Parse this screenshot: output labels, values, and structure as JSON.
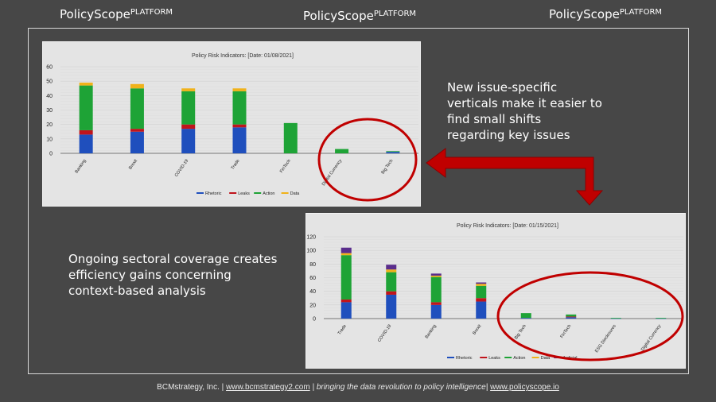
{
  "brand": {
    "name": "PolicyScope",
    "sup": "PLATFORM"
  },
  "callouts": {
    "top_right": [
      "New issue-specific",
      "verticals make it easier to",
      "find small shifts",
      "regarding key issues"
    ],
    "left": [
      "Ongoing sectoral coverage creates",
      "efficiency gains concerning",
      "context-based analysis"
    ]
  },
  "footer": {
    "company": "BCMstrategy, Inc. |",
    "site": "www.bcmstrategy2.com",
    "tagline": "| bringing the data revolution to policy intelligence|",
    "site2": "www.policyscope.io"
  },
  "colors": {
    "Rhetoric": "#1f4fbd",
    "Leaks": "#c0141c",
    "Action": "#1ea336",
    "Data": "#f0b21a",
    "Judicial": "#5a2d8c",
    "highlight": "#c00000"
  },
  "chart_data": [
    {
      "type": "bar",
      "stacked": true,
      "title": "Policy Risk Indicators: [Date: 01/08/2021]",
      "categories": [
        "Banking",
        "Brexit",
        "COVID-19",
        "Trade",
        "FinTech",
        "Digital Currency",
        "Big Tech"
      ],
      "series": [
        {
          "name": "Rhetoric",
          "values": [
            13,
            15,
            17,
            18,
            0,
            0,
            1
          ]
        },
        {
          "name": "Leaks",
          "values": [
            3,
            2,
            3,
            2,
            0,
            0,
            0
          ]
        },
        {
          "name": "Action",
          "values": [
            31,
            28,
            23,
            23,
            21,
            3,
            0.5
          ]
        },
        {
          "name": "Data",
          "values": [
            2,
            3,
            2,
            2,
            0,
            0,
            0
          ]
        }
      ],
      "yticks": [
        0,
        10,
        20,
        30,
        40,
        50,
        60
      ],
      "ylim": [
        0,
        60
      ],
      "legend": "bottom-center"
    },
    {
      "type": "bar",
      "stacked": true,
      "title": "Policy Risk Indicators: [Date: 01/15/2021]",
      "categories": [
        "Trade",
        "COVID-19",
        "Banking",
        "Brexit",
        "Big Tech",
        "FinTech",
        "ESG Disclosures",
        "Digital Currency"
      ],
      "series": [
        {
          "name": "Rhetoric",
          "values": [
            24,
            35,
            20,
            25,
            1,
            2,
            0.5,
            0.5
          ]
        },
        {
          "name": "Leaks",
          "values": [
            4,
            5,
            4,
            5,
            0,
            1,
            0,
            0
          ]
        },
        {
          "name": "Action",
          "values": [
            65,
            28,
            37,
            18,
            7,
            3,
            0.5,
            0.5
          ]
        },
        {
          "name": "Data",
          "values": [
            3,
            4,
            2,
            3,
            0,
            0,
            0,
            0
          ]
        },
        {
          "name": "Judicial",
          "values": [
            8,
            7,
            3,
            2,
            0,
            0,
            0,
            0
          ]
        }
      ],
      "yticks": [
        0,
        20,
        40,
        60,
        80,
        100,
        120
      ],
      "ylim": [
        0,
        120
      ],
      "legend": "bottom-center"
    }
  ]
}
